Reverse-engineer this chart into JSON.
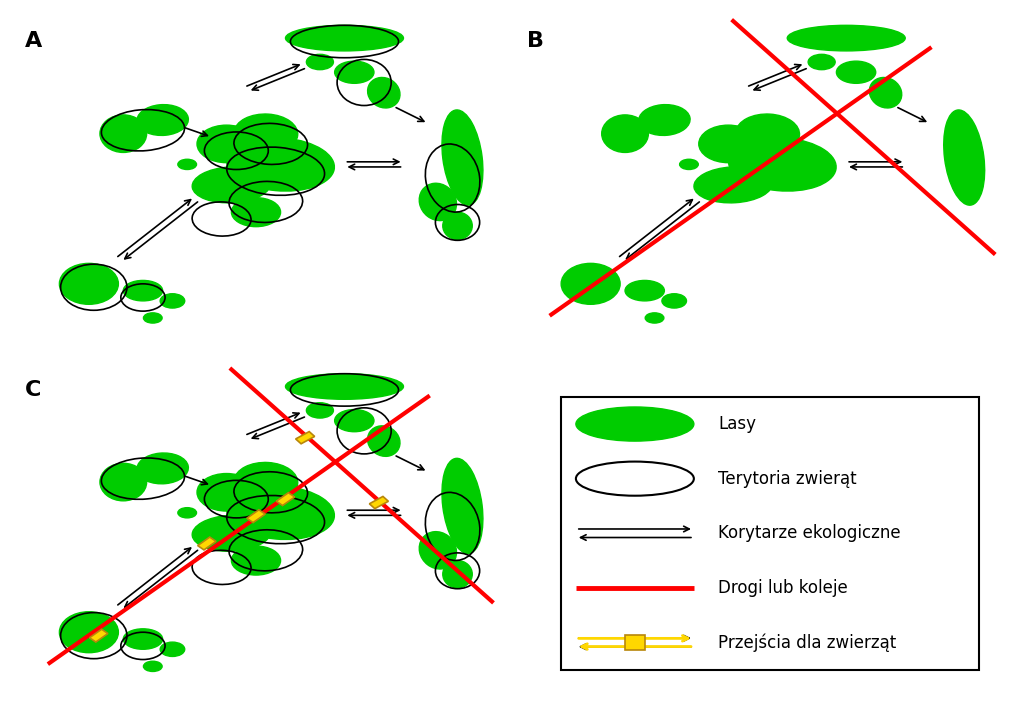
{
  "green": "#00CC00",
  "red": "#FF0000",
  "yellow": "#FFD700",
  "yellow_dark": "#B8860B",
  "black": "#000000",
  "white": "#FFFFFF",
  "panel_labels": [
    "A",
    "B",
    "C"
  ],
  "legend_labels": [
    "Lasy",
    "Terytoria zwierąt",
    "Korytarze ekologiczne",
    "Drogi lub koleje",
    "Przejścia dla zwierząt"
  ]
}
